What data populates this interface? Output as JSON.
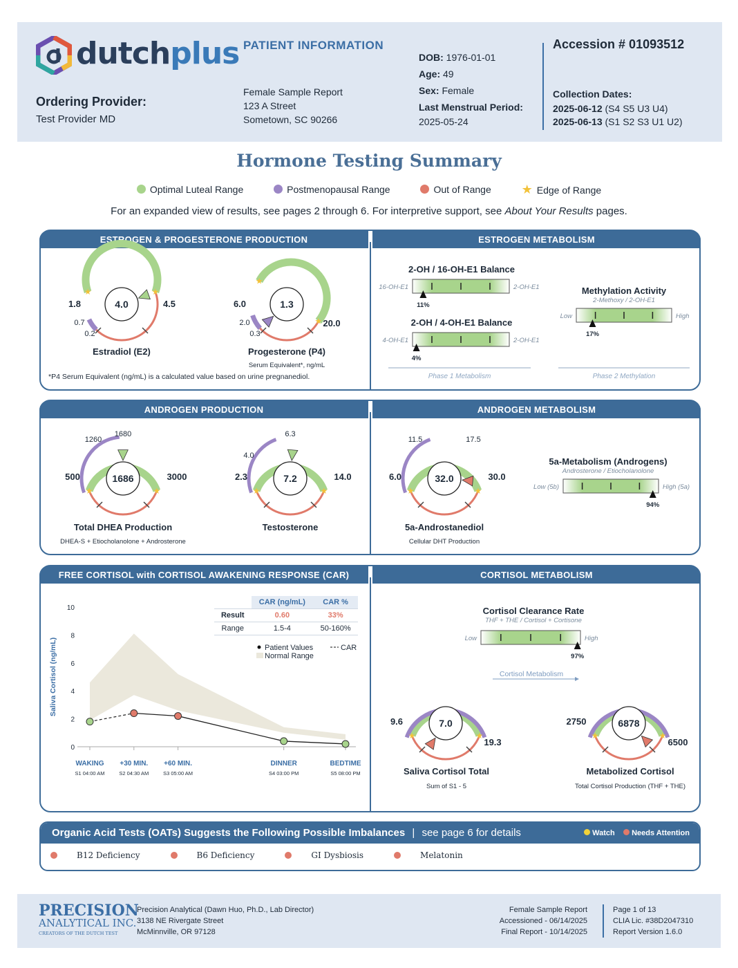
{
  "header": {
    "brand_name": "dutch",
    "brand_plus": "plus",
    "ordering_provider_label": "Ordering Provider:",
    "ordering_provider": "Test Provider MD",
    "patient_info_title": "PATIENT INFORMATION",
    "patient_name": "Female Sample Report",
    "address1": "123 A Street",
    "address2": "Sometown, SC 90266",
    "dob_label": "DOB:",
    "dob": "1976-01-01",
    "age_label": "Age:",
    "age": "49",
    "sex_label": "Sex:",
    "sex": "Female",
    "lmp_label": "Last Menstrual Period:",
    "lmp": "2025-05-24",
    "accession": "Accession # 01093512",
    "collection_label": "Collection Dates:",
    "collection1_date": "2025-06-12",
    "collection1_samples": "(S4 S5 U3 U4)",
    "collection2_date": "2025-06-13",
    "collection2_samples": "(S1 S2 S3 U1 U2)"
  },
  "summary": {
    "title": "Hormone Testing Summary",
    "legend": {
      "optimal": "Optimal Luteal Range",
      "postmeno": "Postmenopausal Range",
      "out": "Out of Range",
      "edge": "Edge of Range"
    },
    "subline_a": "For an expanded view of results, see pages 2 through 6. For interpretive support, see ",
    "subline_b": "About Your Results",
    "subline_c": " pages."
  },
  "colors": {
    "green": "#a8d48c",
    "purple": "#9b86c5",
    "red": "#e07a6a",
    "gold": "#f2c23a",
    "navy": "#3d6b98"
  },
  "panels": {
    "ep_title": "ESTROGEN & PROGESTERONE PRODUCTION",
    "em_title": "ESTROGEN METABOLISM",
    "ap_title": "ANDROGEN PRODUCTION",
    "am_title": "ANDROGEN METABOLISM",
    "fc_title": "FREE CORTISOL with CORTISOL AWAKENING RESPONSE (CAR)",
    "cm_title": "CORTISOL METABOLISM"
  },
  "gauges": {
    "e2": {
      "value": "4.0",
      "low": "1.8",
      "high": "4.5",
      "pm_high": "0.7",
      "pm_low": "0.2",
      "name": "Estradiol (E2)",
      "sub": ""
    },
    "p4": {
      "value": "1.3",
      "low": "6.0",
      "high": "20.0",
      "pm_high": "2.0",
      "pm_low": "0.3",
      "name": "Progesterone (P4)",
      "sub": "Serum Equivalent*, ng/mL"
    },
    "dhea": {
      "value": "1686",
      "low": "500",
      "high": "3000",
      "pm_low": "1260",
      "pm_high": "1680",
      "name": "Total DHEA Production",
      "sub": "DHEA-S + Etiocholanolone + Androsterone"
    },
    "testo": {
      "value": "7.2",
      "low": "2.3",
      "high": "14.0",
      "pm_low": "4.0",
      "pm_high": "6.3",
      "name": "Testosterone",
      "sub": ""
    },
    "andro": {
      "value": "32.0",
      "low": "6.0",
      "high": "30.0",
      "pm_low": "11.5",
      "pm_high": "17.5",
      "name": "5a-Androstanediol",
      "sub": "Cellular DHT Production"
    },
    "cort": {
      "value": "7.0",
      "low": "9.6",
      "high": "19.3",
      "name": "Saliva Cortisol Total",
      "sub": "Sum of S1 - 5"
    },
    "metcort": {
      "value": "6878",
      "low": "2750",
      "high": "6500",
      "name": "Metabolized Cortisol",
      "sub": "Total Cortisol Production (THF + THE)"
    }
  },
  "p4_note": "*P4 Serum Equivalent (ng/mL) is a calculated value based on urine pregnanediol.",
  "balances": {
    "oh16": {
      "title": "2-OH / 16-OH-E1 Balance",
      "left": "16-OH-E1",
      "right": "2-OH-E1",
      "pct": "11%",
      "fraction": 0.11
    },
    "oh4": {
      "title": "2-OH / 4-OH-E1 Balance",
      "left": "4-OH-E1",
      "right": "2-OH-E1",
      "pct": "4%",
      "fraction": 0.04
    },
    "meth": {
      "title": "Methylation Activity",
      "sub": "2-Methoxy / 2-OH-E1",
      "left": "Low",
      "right": "High",
      "pct": "17%",
      "fraction": 0.17
    },
    "fivea": {
      "title": "5a-Metabolism (Androgens)",
      "sub": "Androsterone / Etiocholanolone",
      "left": "Low (5b)",
      "right": "High (5a)",
      "pct": "94%",
      "fraction": 0.94
    },
    "ccr": {
      "title": "Cortisol Clearance Rate",
      "sub": "THF + THE / Cortisol + Cortisone",
      "left": "Low",
      "right": "High",
      "pct": "97%",
      "fraction": 0.97
    },
    "phase1": "Phase 1 Metabolism",
    "phase2": "Phase 2 Methylation",
    "cort_met_link": "Cortisol Metabolism"
  },
  "car_table": {
    "h1": "CAR (ng/mL)",
    "h2": "CAR %",
    "r1_label": "Result",
    "r1_v1": "0.60",
    "r1_v2": "33%",
    "r2_label": "Range",
    "r2_v1": "1.5-4",
    "r2_v2": "50-160%"
  },
  "chart_data": {
    "type": "line",
    "ylabel": "Saliva Cortisol  (ng/mL)",
    "ylim": [
      0,
      10
    ],
    "yticks": [
      "0",
      "2",
      "4",
      "6",
      "8",
      "10"
    ],
    "categories": [
      "WAKING",
      "+30 MIN.",
      "+60 MIN.",
      "DINNER",
      "BEDTIME"
    ],
    "sublabels": [
      "S1 04:00 AM",
      "S2 04:30 AM",
      "S3 05:00 AM",
      "S4 03:00 PM",
      "S5 08:00 PM"
    ],
    "x": [
      0,
      0.5,
      1.0,
      2.2,
      2.9
    ],
    "values": [
      1.8,
      2.4,
      2.2,
      0.4,
      0.2
    ],
    "point_status": [
      "green",
      "red",
      "red",
      "green",
      "green"
    ],
    "normal_low": [
      1.9,
      3.7,
      2.6,
      1.0,
      0.5
    ],
    "normal_high": [
      4.6,
      8.1,
      5.2,
      1.4,
      0.9
    ],
    "legend_points": "Patient Values",
    "legend_car": "CAR",
    "legend_normal": "Normal Range"
  },
  "oat": {
    "title": "Organic Acid Tests (OATs) Suggests the Following Possible Imbalances",
    "see": "see page 6 for details",
    "watch": "Watch",
    "attn": "Needs Attention",
    "items": [
      "B12 Deficiency",
      "B6 Deficiency",
      "GI Dysbiosis",
      "Melatonin"
    ]
  },
  "footer": {
    "logo1": "PRECISION",
    "logo2": "ANALYTICAL INC.",
    "logo3": "CREATORS OF THE DUTCH TEST",
    "lab1": "Precision Analytical (Dawn Huo, Ph.D., Lab Director)",
    "lab2": "3138 NE Rivergate Street",
    "lab3": "McMinnville, OR 97128",
    "r1": "Female Sample Report",
    "r2": "Accessioned - 06/14/2025",
    "r3": "Final Report - 10/14/2025",
    "p1": "Page 1 of 13",
    "p2": "CLIA Lic. #38D2047310",
    "p3": "Report Version 1.6.0"
  }
}
